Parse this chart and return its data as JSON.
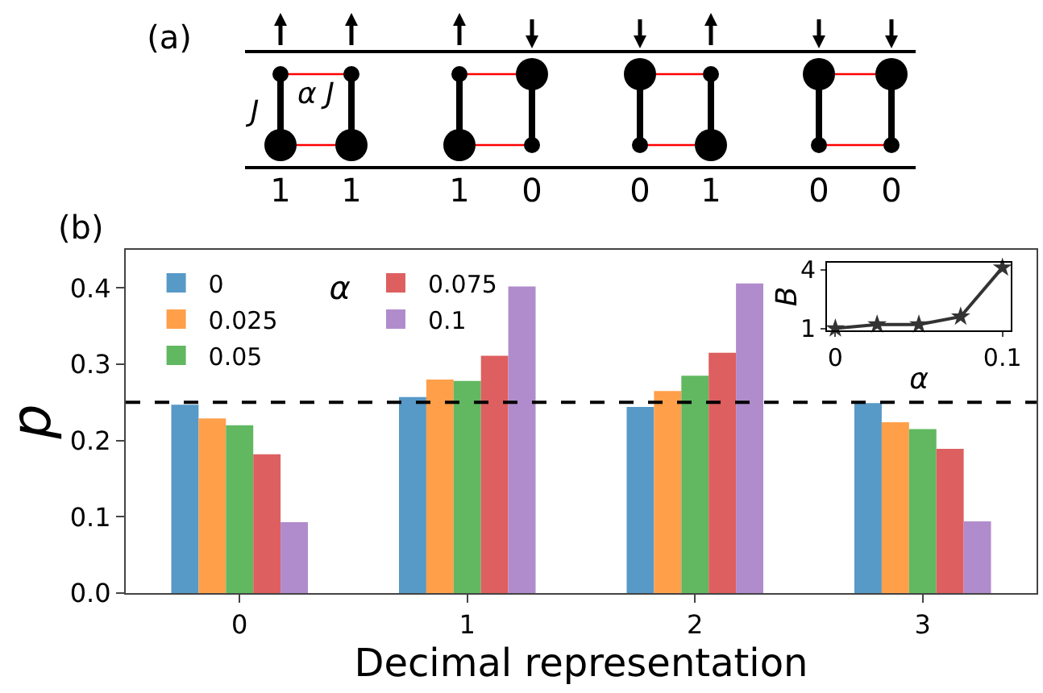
{
  "chart_data": [
    {
      "type": "other",
      "annotations": [
        "(a)",
        "J",
        "α J",
        "1",
        "1",
        "1",
        "0",
        "0",
        "1",
        "0",
        "0"
      ]
    },
    {
      "type": "bar",
      "categories": [
        "0",
        "1",
        "2",
        "3"
      ],
      "xlabel": "Decimal representation",
      "ylabel": "p",
      "legend_title": "α",
      "legend": "top left",
      "grid": false,
      "annotations": [
        "(b)"
      ],
      "series": [
        {
          "name": "0",
          "color": "#5799c7",
          "values": [
            0.247,
            0.257,
            0.244,
            0.249
          ]
        },
        {
          "name": "0.025",
          "color": "#ff9f4a",
          "values": [
            0.229,
            0.28,
            0.265,
            0.224
          ]
        },
        {
          "name": "0.05",
          "color": "#61b861",
          "values": [
            0.22,
            0.278,
            0.285,
            0.215
          ]
        },
        {
          "name": "0.075",
          "color": "#de5f5f",
          "values": [
            0.182,
            0.311,
            0.315,
            0.189
          ]
        },
        {
          "name": "0.1",
          "color": "#b08ccc",
          "values": [
            0.093,
            0.402,
            0.406,
            0.094
          ]
        }
      ],
      "ylim": [
        0,
        0.45
      ],
      "yticks": [
        {
          "value": 0,
          "label": "0.0"
        },
        0.1,
        0.2,
        0.3,
        0.4
      ],
      "ref_lines": [
        {
          "axis": "y",
          "value": 0.25,
          "color": "#000000",
          "line_style": "dashed"
        }
      ]
    },
    {
      "type": "line",
      "x": [
        0,
        0.025,
        0.05,
        0.075,
        0.1
      ],
      "xlabel": "α",
      "ylabel": "B",
      "marker": "star",
      "line_style": "solid",
      "grid": false,
      "series": [
        {
          "color": "#333333",
          "values": [
            1.0,
            1.2,
            1.2,
            1.6,
            4.1
          ]
        }
      ],
      "xlim": [
        -0.005,
        0.105
      ],
      "xticks": [
        0,
        0.1
      ],
      "ylim": [
        0.9,
        4.35
      ],
      "yticks": [
        1,
        4
      ]
    }
  ]
}
